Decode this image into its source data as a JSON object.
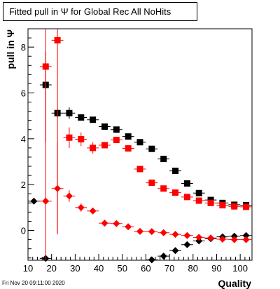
{
  "chart_data": {
    "type": "scatter",
    "title": "Fitted pull in  Ψ  for Global Rec All NoHits",
    "xlabel": "Quality",
    "ylabel": "pull in  Ψ",
    "xlim": [
      10,
      105
    ],
    "ylim": [
      -1.3,
      8.8
    ],
    "xticks": [
      10,
      20,
      30,
      40,
      50,
      60,
      70,
      80,
      90,
      100
    ],
    "yticks": [
      0,
      2,
      4,
      6,
      8
    ],
    "grid": false,
    "legend": "none",
    "bin_width": 5,
    "series": [
      {
        "marker": "square",
        "color": "#000000",
        "x": [
          17.5,
          22.5,
          27.5,
          32.5,
          37.5,
          42.5,
          47.5,
          52.5,
          57.5,
          62.5,
          67.5,
          72.5,
          77.5,
          82.5,
          87.5,
          92.5,
          97.5,
          102.5
        ],
        "y": [
          6.35,
          5.12,
          5.12,
          4.93,
          4.83,
          4.53,
          4.4,
          4.1,
          3.85,
          3.56,
          3.12,
          2.6,
          2.05,
          1.63,
          1.33,
          1.2,
          1.12,
          1.1
        ],
        "err": [
          0,
          0.2,
          0.25,
          0.12,
          0.1,
          0.08,
          0.08,
          0.06,
          0.06,
          0.05,
          0.05,
          0.05,
          0.04,
          0.04,
          0.04,
          0.03,
          0.03,
          0.03
        ]
      },
      {
        "marker": "square",
        "color": "#ff0000",
        "x": [
          17.5,
          22.5,
          27.5,
          32.5,
          37.5,
          42.5,
          47.5,
          52.5,
          57.5,
          62.5,
          67.5,
          72.5,
          77.5,
          82.5,
          87.5,
          92.5,
          97.5,
          102.5
        ],
        "y": [
          7.15,
          8.3,
          4.05,
          3.98,
          3.6,
          3.72,
          3.95,
          3.58,
          2.68,
          2.08,
          1.83,
          1.65,
          1.46,
          1.3,
          1.2,
          1.1,
          1.05,
          1.03
        ],
        "err": [
          3.3,
          8.4,
          0.45,
          0.3,
          0.25,
          0.12,
          0.1,
          0.08,
          0.08,
          0.06,
          0.05,
          0.05,
          0.04,
          0.04,
          0.04,
          0.03,
          0.03,
          0.03
        ]
      },
      {
        "marker": "diamond",
        "color": "#000000",
        "x": [
          12.5,
          17.5,
          62.5,
          67.5,
          72.5,
          77.5,
          82.5,
          87.5,
          92.5,
          97.5,
          102.5
        ],
        "y": [
          1.28,
          -1.22,
          -1.28,
          -1.12,
          -0.88,
          -0.62,
          -0.46,
          -0.36,
          -0.28,
          -0.25,
          -0.22
        ],
        "err": [
          0,
          0,
          0.05,
          0.05,
          0.05,
          0.05,
          0.04,
          0.04,
          0.03,
          0.03,
          0.03
        ]
      },
      {
        "marker": "diamond",
        "color": "#ff0000",
        "x": [
          17.5,
          22.5,
          27.5,
          32.5,
          37.5,
          42.5,
          47.5,
          52.5,
          57.5,
          62.5,
          67.5,
          72.5,
          77.5,
          82.5,
          87.5,
          92.5,
          97.5,
          102.5
        ],
        "y": [
          1.28,
          1.83,
          1.5,
          1.0,
          0.85,
          0.32,
          0.3,
          0.16,
          -0.04,
          -0.05,
          -0.1,
          -0.17,
          -0.22,
          -0.3,
          -0.33,
          -0.38,
          -0.4,
          -0.4
        ],
        "err": [
          6.5,
          2.0,
          0.25,
          0.18,
          0.12,
          0.08,
          0.06,
          0.05,
          0.05,
          0.05,
          0.04,
          0.04,
          0.04,
          0.03,
          0.03,
          0.03,
          0.03,
          0.03
        ]
      }
    ]
  },
  "footer": {
    "timestamp": "Fri Nov 20 09:11:00 2020"
  }
}
